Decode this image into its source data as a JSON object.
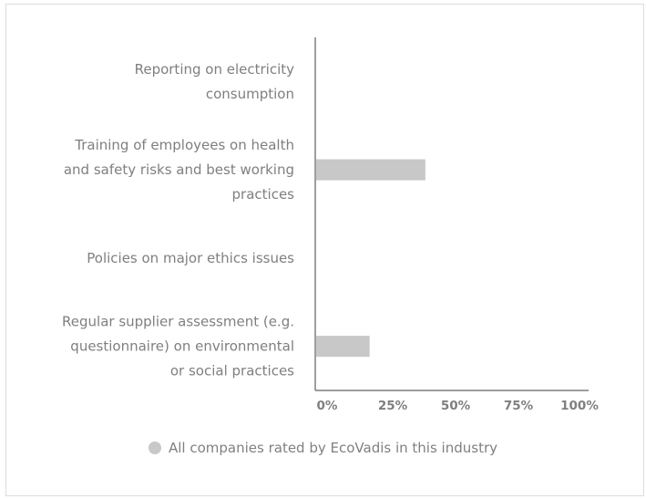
{
  "chart_data": {
    "type": "bar",
    "orientation": "horizontal",
    "categories": [
      [
        "Reporting on electricity",
        "consumption"
      ],
      [
        "Training of employees on health",
        "and safety risks and best working",
        "practices"
      ],
      [
        "Policies on major ethics issues"
      ],
      [
        "Regular supplier assessment (e.g.",
        "questionnaire) on environmental",
        "or social practices"
      ]
    ],
    "series": [
      {
        "name": "All companies rated by EcoVadis in this industry",
        "values": [
          0,
          47,
          0,
          23
        ],
        "color": "#c8c8c8"
      }
    ],
    "xlim": [
      0,
      100
    ],
    "x_ticks": [
      "0%",
      "25%",
      "50%",
      "75%",
      "100%"
    ],
    "legend_position": "bottom-center",
    "grid": false
  },
  "colors": {
    "axis": "#7f7f7f",
    "text": "#7f7f7f",
    "frame_border": "#dcdcdc"
  }
}
